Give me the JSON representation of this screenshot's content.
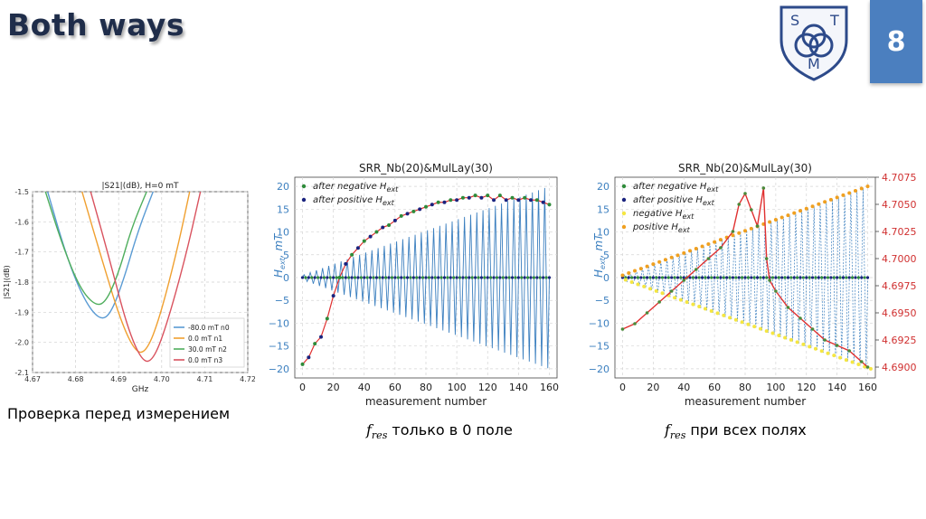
{
  "slide": {
    "title": "Both ways",
    "page_number": "8",
    "logo_letters": [
      "S",
      "T",
      "M"
    ],
    "caption_left": "Проверка перед измерением",
    "caption_mid_symbol": "f",
    "caption_mid_sub": "res",
    "caption_mid_text": " только в 0 поле",
    "caption_right_symbol": "f",
    "caption_right_sub": "res",
    "caption_right_text": " при всех полях"
  },
  "chart_data": [
    {
      "type": "line",
      "title": "|S21|(dB), H=0 mT",
      "xlabel": "GHz",
      "ylabel": "|S21|(dB)",
      "xlim": [
        4.67,
        4.72
      ],
      "ylim": [
        -2.1,
        -1.5
      ],
      "xticks": [
        "4.67",
        "4.68",
        "4.69",
        "4.70",
        "4.71",
        "4.72"
      ],
      "yticks": [
        "-1.5",
        "-1.6",
        "-1.7",
        "-1.8",
        "-1.9",
        "-2.0",
        "-2.1"
      ],
      "grid": true,
      "legend_position": "bottom-right",
      "series": [
        {
          "name": "-80.0 mT n0",
          "color": "#5a9bd4",
          "x": [
            4.6735,
            4.678,
            4.682,
            4.6855,
            4.688,
            4.691,
            4.6945,
            4.698
          ],
          "y": [
            -1.5,
            -1.72,
            -1.86,
            -1.925,
            -1.91,
            -1.8,
            -1.63,
            -1.5
          ]
        },
        {
          "name": "0.0 mT n1",
          "color": "#f0a030",
          "x": [
            4.6815,
            4.686,
            4.6905,
            4.694,
            4.6965,
            4.6995,
            4.7035,
            4.7065
          ],
          "y": [
            -1.5,
            -1.72,
            -1.93,
            -2.035,
            -2.03,
            -1.92,
            -1.7,
            -1.5
          ]
        },
        {
          "name": "30.0 mT n2",
          "color": "#4fae5d",
          "x": [
            4.673,
            4.677,
            4.681,
            4.6845,
            4.687,
            4.69,
            4.693,
            4.6965
          ],
          "y": [
            -1.5,
            -1.68,
            -1.82,
            -1.878,
            -1.868,
            -1.77,
            -1.62,
            -1.5
          ]
        },
        {
          "name": "0.0 mT n3",
          "color": "#d9535f",
          "x": [
            4.6835,
            4.688,
            4.692,
            4.6955,
            4.698,
            4.701,
            4.7055,
            4.709
          ],
          "y": [
            -1.5,
            -1.73,
            -1.95,
            -2.065,
            -2.06,
            -1.95,
            -1.72,
            -1.5
          ]
        }
      ]
    },
    {
      "type": "line",
      "title": "SRR_Nb(20)&MulLay(30)",
      "xlabel": "measurement number",
      "ylabel_main": "H",
      "ylabel_sub": "ext",
      "ylabel_unit": ", mT",
      "xlim": [
        -5,
        165
      ],
      "ylim": [
        -22,
        22
      ],
      "xticks": [
        "0",
        "20",
        "40",
        "60",
        "80",
        "100",
        "120",
        "140",
        "160"
      ],
      "yticks": [
        "20",
        "15",
        "10",
        "5",
        "0",
        "−5",
        "−10",
        "−15",
        "−20"
      ],
      "grid": true,
      "legend_position": "top-left",
      "legend": [
        {
          "label": "after negative H",
          "sub": "ext",
          "color": "#2e8b3a"
        },
        {
          "label": "after positive H",
          "sub": "ext",
          "color": "#1a237e"
        }
      ],
      "field_sweep": {
        "color": "#3b7fbf",
        "amplitude_start": 0.5,
        "amplitude_end": 20,
        "points": 161
      },
      "red_line_color": "#e03030",
      "measurement_values": [
        {
          "x": 0,
          "y": -19
        },
        {
          "x": 4,
          "y": -17.5
        },
        {
          "x": 8,
          "y": -14.5
        },
        {
          "x": 12,
          "y": -13
        },
        {
          "x": 16,
          "y": -9
        },
        {
          "x": 20,
          "y": -4
        },
        {
          "x": 24,
          "y": 0
        },
        {
          "x": 28,
          "y": 3
        },
        {
          "x": 32,
          "y": 5
        },
        {
          "x": 36,
          "y": 6.5
        },
        {
          "x": 40,
          "y": 8
        },
        {
          "x": 44,
          "y": 9
        },
        {
          "x": 48,
          "y": 10
        },
        {
          "x": 52,
          "y": 11
        },
        {
          "x": 56,
          "y": 11.5
        },
        {
          "x": 60,
          "y": 12.5
        },
        {
          "x": 64,
          "y": 13.5
        },
        {
          "x": 68,
          "y": 14
        },
        {
          "x": 72,
          "y": 14.5
        },
        {
          "x": 76,
          "y": 15
        },
        {
          "x": 80,
          "y": 15.5
        },
        {
          "x": 84,
          "y": 16
        },
        {
          "x": 88,
          "y": 16.5
        },
        {
          "x": 92,
          "y": 16.5
        },
        {
          "x": 96,
          "y": 17
        },
        {
          "x": 100,
          "y": 17
        },
        {
          "x": 104,
          "y": 17.5
        },
        {
          "x": 108,
          "y": 17.5
        },
        {
          "x": 112,
          "y": 18
        },
        {
          "x": 116,
          "y": 17.5
        },
        {
          "x": 120,
          "y": 18
        },
        {
          "x": 124,
          "y": 17
        },
        {
          "x": 128,
          "y": 18
        },
        {
          "x": 132,
          "y": 17
        },
        {
          "x": 136,
          "y": 17.5
        },
        {
          "x": 140,
          "y": 17
        },
        {
          "x": 144,
          "y": 17.5
        },
        {
          "x": 148,
          "y": 17
        },
        {
          "x": 152,
          "y": 17
        },
        {
          "x": 156,
          "y": 16.5
        },
        {
          "x": 160,
          "y": 16
        }
      ]
    },
    {
      "type": "line",
      "title": "SRR_Nb(20)&MulLay(30)",
      "xlabel": "measurement number",
      "ylabel_main": "H",
      "ylabel_sub": "ext",
      "ylabel_unit": ", mT",
      "y2label_main": "f",
      "y2label_sub": "res",
      "y2label_unit": ", GHz",
      "xlim": [
        -5,
        165
      ],
      "ylim": [
        -22,
        22
      ],
      "y2lim": [
        4.689,
        4.7075
      ],
      "xticks": [
        "0",
        "20",
        "40",
        "60",
        "80",
        "100",
        "120",
        "140",
        "160"
      ],
      "yticks": [
        "20",
        "15",
        "10",
        "5",
        "0",
        "−5",
        "−10",
        "−15",
        "−20"
      ],
      "y2ticks": [
        "4.7075",
        "4.7050",
        "4.7025",
        "4.7000",
        "4.6975",
        "4.6950",
        "4.6925",
        "4.6900"
      ],
      "grid": true,
      "legend_position": "top-left",
      "legend": [
        {
          "label": "after negative H",
          "sub": "ext",
          "color": "#2e8b3a"
        },
        {
          "label": "after positive H",
          "sub": "ext",
          "color": "#1a237e"
        },
        {
          "label": "negative H",
          "sub": "ext",
          "color": "#f5e642"
        },
        {
          "label": "positive H",
          "sub": "ext",
          "color": "#f0a020"
        }
      ],
      "field_sweep": {
        "color": "#3b7fbf",
        "amplitude_start": 0.5,
        "amplitude_end": 20,
        "points": 161
      },
      "fres_color": "#e03030",
      "fres_values": [
        {
          "x": 0,
          "y": 4.6935
        },
        {
          "x": 8,
          "y": 4.694
        },
        {
          "x": 16,
          "y": 4.695
        },
        {
          "x": 24,
          "y": 4.696
        },
        {
          "x": 32,
          "y": 4.697
        },
        {
          "x": 40,
          "y": 4.698
        },
        {
          "x": 48,
          "y": 4.699
        },
        {
          "x": 56,
          "y": 4.7
        },
        {
          "x": 64,
          "y": 4.701
        },
        {
          "x": 72,
          "y": 4.7025
        },
        {
          "x": 76,
          "y": 4.705
        },
        {
          "x": 80,
          "y": 4.706
        },
        {
          "x": 84,
          "y": 4.7045
        },
        {
          "x": 88,
          "y": 4.703
        },
        {
          "x": 92,
          "y": 4.7065
        },
        {
          "x": 94,
          "y": 4.7
        },
        {
          "x": 96,
          "y": 4.698
        },
        {
          "x": 100,
          "y": 4.697
        },
        {
          "x": 108,
          "y": 4.6955
        },
        {
          "x": 116,
          "y": 4.6945
        },
        {
          "x": 124,
          "y": 4.6935
        },
        {
          "x": 132,
          "y": 4.6925
        },
        {
          "x": 140,
          "y": 4.692
        },
        {
          "x": 148,
          "y": 4.6915
        },
        {
          "x": 156,
          "y": 4.6905
        },
        {
          "x": 160,
          "y": 4.69
        }
      ]
    }
  ]
}
